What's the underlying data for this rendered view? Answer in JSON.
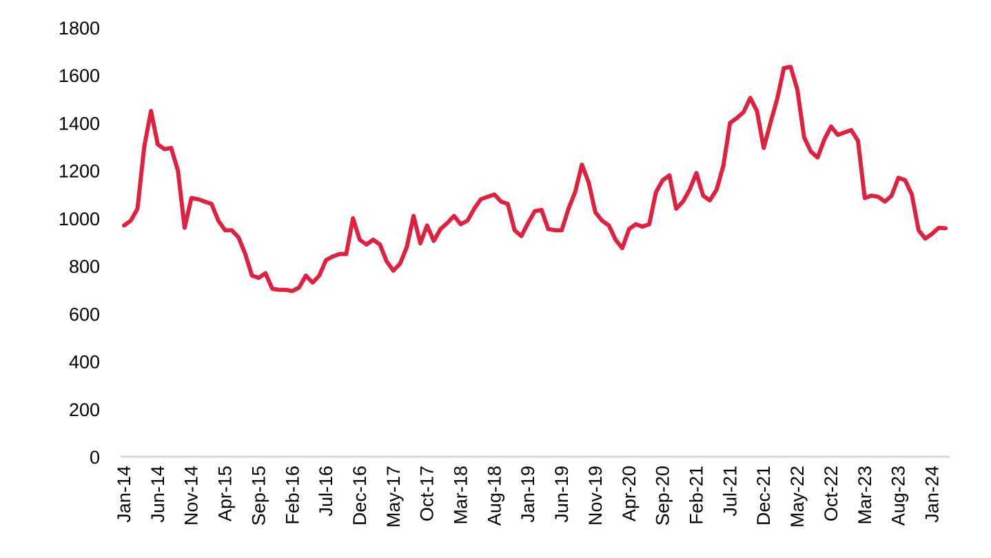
{
  "chart_data": {
    "type": "line",
    "title": "",
    "xlabel": "",
    "ylabel": "",
    "ylim": [
      0,
      1800
    ],
    "yticks": [
      0,
      200,
      400,
      600,
      800,
      1000,
      1200,
      1400,
      1600,
      1800
    ],
    "grid": false,
    "legend": "none",
    "xtick_labels": [
      "Jan-14",
      "Jun-14",
      "Nov-14",
      "Apr-15",
      "Sep-15",
      "Feb-16",
      "Jul-16",
      "Dec-16",
      "May-17",
      "Oct-17",
      "Mar-18",
      "Aug-18",
      "Jan-19",
      "Jun-19",
      "Nov-19",
      "Apr-20",
      "Sep-20",
      "Feb-21",
      "Jul-21",
      "Dec-21",
      "May-22",
      "Oct-22",
      "Mar-23",
      "Aug-23",
      "Jan-24"
    ],
    "xtick_every": 5,
    "series": [
      {
        "name": "Series 1",
        "color": "#e0203f",
        "values": [
          970,
          990,
          1040,
          1300,
          1450,
          1310,
          1290,
          1295,
          1200,
          960,
          1085,
          1080,
          1070,
          1060,
          990,
          950,
          950,
          920,
          850,
          760,
          750,
          770,
          705,
          700,
          700,
          695,
          710,
          760,
          730,
          760,
          825,
          840,
          850,
          850,
          1000,
          910,
          890,
          910,
          890,
          820,
          780,
          810,
          880,
          1010,
          895,
          970,
          905,
          955,
          980,
          1010,
          975,
          990,
          1040,
          1080,
          1090,
          1100,
          1070,
          1060,
          950,
          925,
          980,
          1030,
          1035,
          955,
          950,
          950,
          1040,
          1110,
          1225,
          1150,
          1025,
          990,
          970,
          910,
          875,
          955,
          975,
          965,
          975,
          1110,
          1160,
          1180,
          1040,
          1070,
          1120,
          1190,
          1095,
          1075,
          1120,
          1220,
          1400,
          1420,
          1445,
          1505,
          1450,
          1295,
          1400,
          1500,
          1630,
          1635,
          1540,
          1340,
          1280,
          1255,
          1330,
          1385,
          1350,
          1360,
          1370,
          1325,
          1085,
          1095,
          1090,
          1070,
          1095,
          1170,
          1160,
          1100,
          950,
          915,
          935,
          960,
          958
        ]
      }
    ]
  }
}
